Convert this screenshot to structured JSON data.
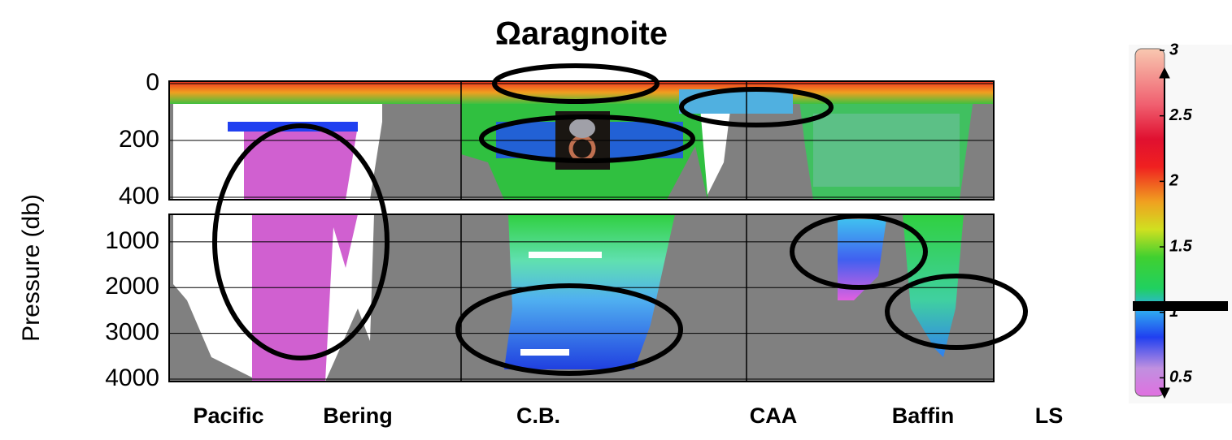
{
  "chart_data": {
    "type": "section",
    "title": "Ωaragnoite",
    "y_label": "Pressure (db)",
    "upper_ylim": [
      0,
      400
    ],
    "upper_yticks": [
      0,
      200,
      400
    ],
    "lower_ylim": [
      400,
      4000
    ],
    "lower_yticks": [
      1000,
      2000,
      3000,
      4000
    ],
    "regions": [
      "Pacific",
      "Bering",
      "C.B.",
      "CAA",
      "Baffin",
      "LS"
    ],
    "colorbar_lim": [
      0.36,
      3
    ],
    "colorbar_ticks": [
      0.5,
      1,
      1.5,
      2,
      2.5,
      3
    ]
  }
}
